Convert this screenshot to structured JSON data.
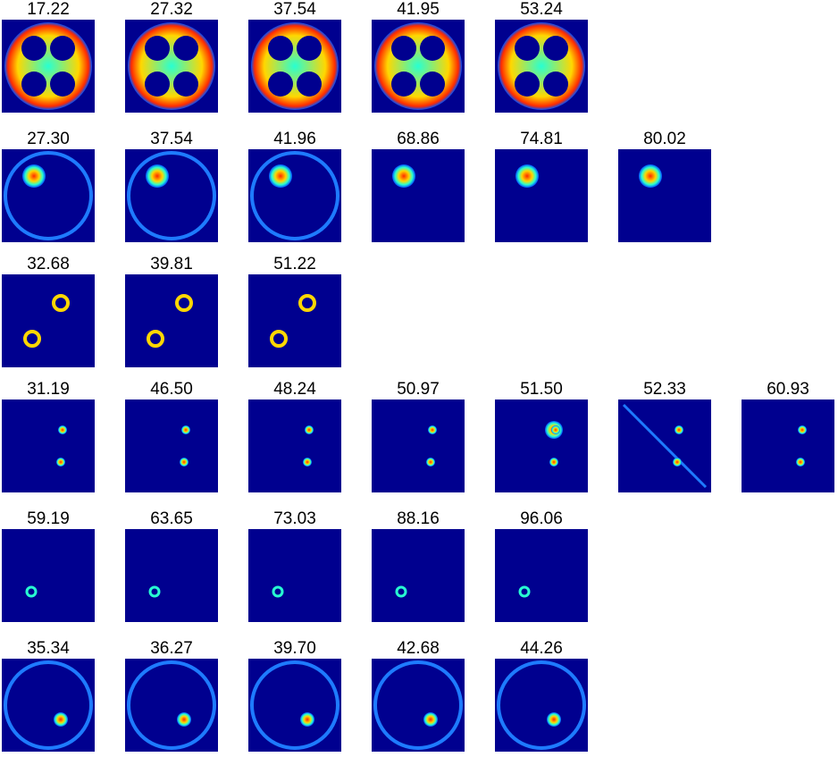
{
  "colors": {
    "background": "#00008f",
    "ring": "#1e7bff",
    "hot_core": "#ff2a00",
    "warm": "#ffd700",
    "mid": "#28ffd2",
    "cool": "#0050ff"
  },
  "rows": [
    {
      "pattern": "phantom-disc",
      "labels": [
        "17.22",
        "27.32",
        "37.54",
        "41.95",
        "53.24"
      ]
    },
    {
      "pattern": "single-hot-spot",
      "labels": [
        "27.30",
        "37.54",
        "41.96",
        "68.86",
        "74.81",
        "80.02"
      ]
    },
    {
      "pattern": "two-rings",
      "labels": [
        "32.68",
        "39.81",
        "51.22"
      ]
    },
    {
      "pattern": "two-dots",
      "labels": [
        "31.19",
        "46.50",
        "48.24",
        "50.97",
        "51.50",
        "52.33",
        "60.93"
      ]
    },
    {
      "pattern": "small-ring",
      "labels": [
        "59.19",
        "63.65",
        "73.03",
        "88.16",
        "96.06"
      ]
    },
    {
      "pattern": "ring-with-spot",
      "labels": [
        "35.34",
        "36.27",
        "39.70",
        "42.68",
        "44.26"
      ]
    }
  ]
}
